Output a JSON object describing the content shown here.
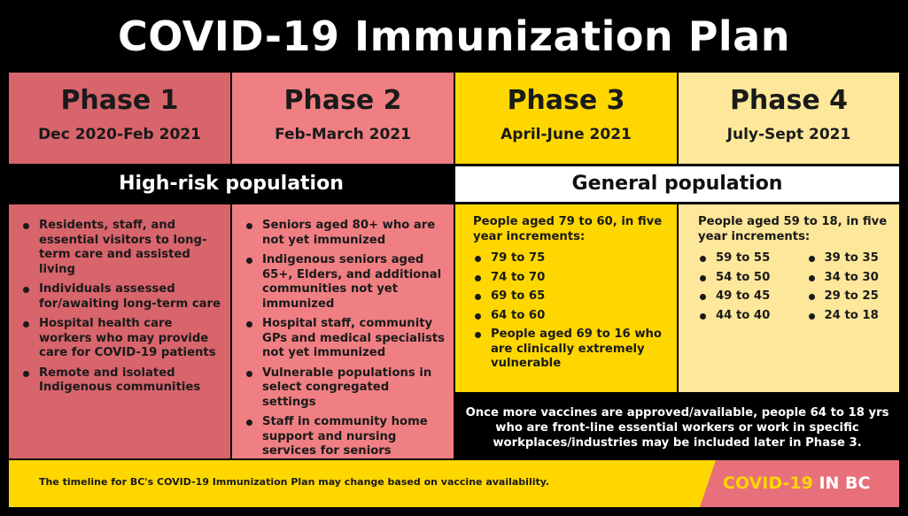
{
  "title": "COVID-19 Immunization Plan",
  "phases": [
    {
      "name": "Phase 1",
      "dates": "Dec 2020-Feb 2021"
    },
    {
      "name": "Phase 2",
      "dates": "Feb-March 2021"
    },
    {
      "name": "Phase 3",
      "dates": "April-June 2021"
    },
    {
      "name": "Phase 4",
      "dates": "July-Sept 2021"
    }
  ],
  "bands": {
    "high_risk": "High-risk population",
    "general": "General population"
  },
  "phase1_items": [
    "Residents, staff, and essential visitors to long-term care and assisted living",
    "Individuals assessed for/awaiting long-term care",
    "Hospital health care workers who may provide care for COVID-19 patients",
    "Remote and isolated Indigenous communities"
  ],
  "phase2_items": [
    "Seniors aged 80+ who are not yet immunized",
    "Indigenous seniors aged 65+, Elders, and additional communities not yet immunized",
    "Hospital staff, community GPs and medical specialists not yet immunized",
    "Vulnerable populations in select congregated settings",
    "Staff in community home support and nursing services for seniors"
  ],
  "phase3": {
    "intro": "People aged 79 to 60, in five year increments:",
    "items": [
      "79 to 75",
      "74 to 70",
      "69 to 65",
      "64 to 60",
      "People aged 69 to 16 who are clinically extremely vulnerable"
    ]
  },
  "phase4": {
    "intro": "People aged 59 to 18, in five year increments:",
    "col1": [
      "59 to 55",
      "54 to 50",
      "49 to 45",
      "44 to 40"
    ],
    "col2": [
      "39 to 35",
      "34 to 30",
      "29 to 25",
      "24 to 18"
    ]
  },
  "note": "Once more vaccines are approved/available, people 64 to 18 yrs who are front-line essential workers or work in specific workplaces/industries may be included later in Phase 3.",
  "footer": {
    "disclaimer": "The timeline for BC's COVID-19 Immunization Plan may change based on vaccine availability.",
    "brand_part1": "COVID-19",
    "brand_part2": "IN BC"
  },
  "colors": {
    "phase1": "#d8646c",
    "phase2": "#f07f83",
    "phase3": "#ffd700",
    "phase4": "#fde79a",
    "background": "#000000"
  }
}
